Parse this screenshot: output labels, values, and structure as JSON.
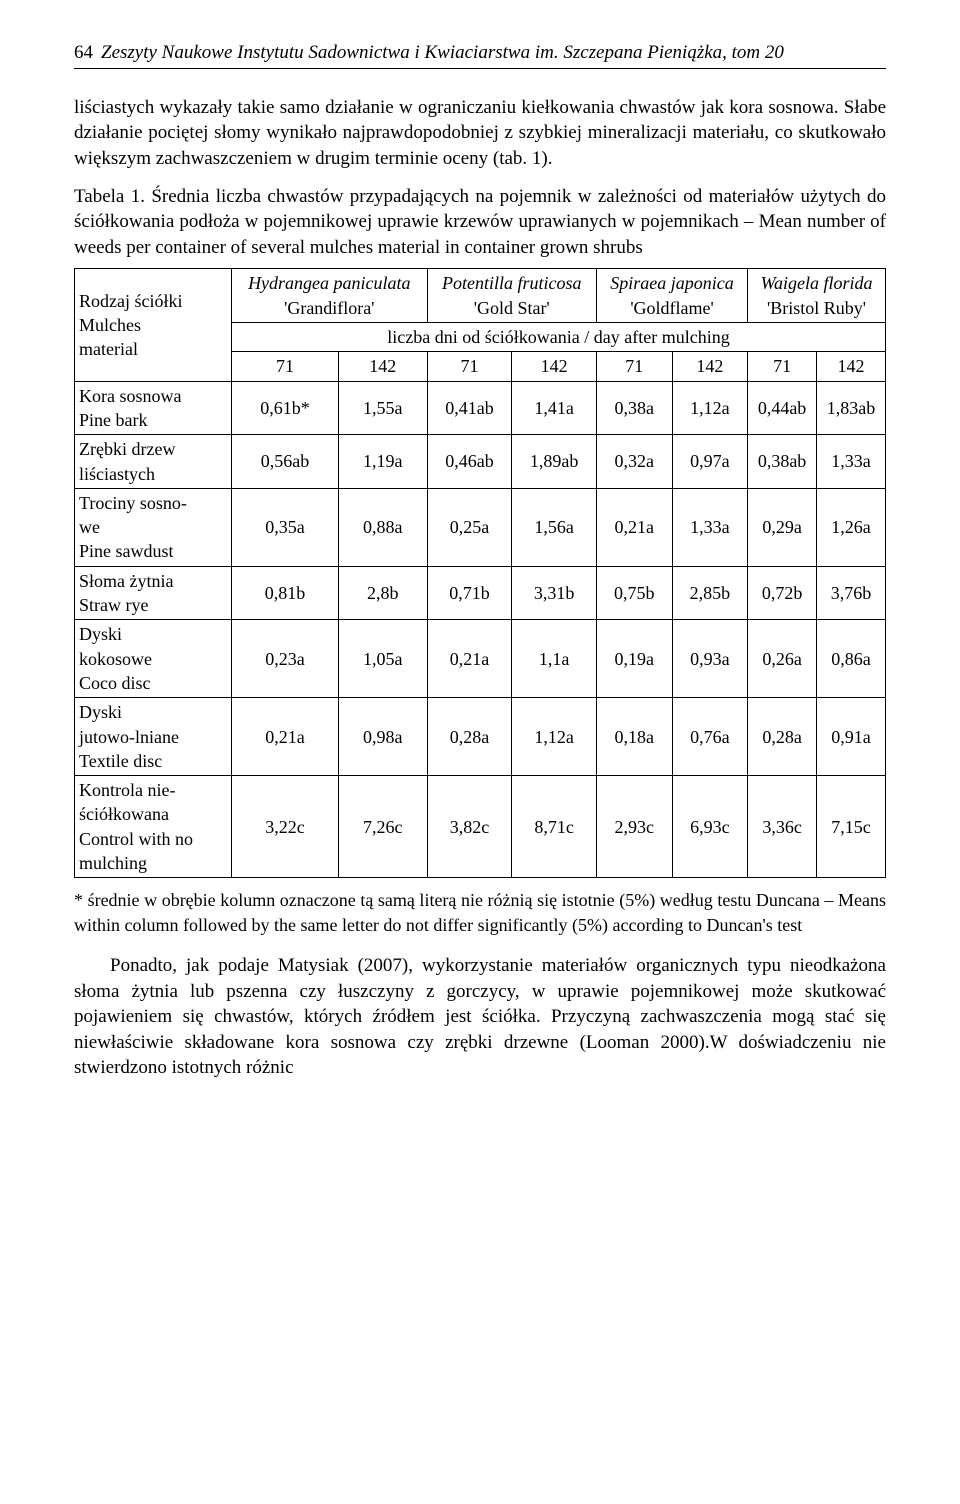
{
  "header": {
    "page_number": "64",
    "journal_title": "Zeszyty Naukowe Instytutu Sadownictwa i Kwiaciarstwa im. Szczepana Pieniążka, tom 20"
  },
  "paragraphs": {
    "p1": "liściastych wykazały takie samo działanie w ograniczaniu kiełkowania chwastów jak kora sosnowa. Słabe działanie pociętej słomy wynikało najprawdopodobniej z szybkiej mineralizacji materiału, co skutkowało większym zachwaszczeniem w drugim terminie oceny (tab. 1).",
    "table_caption": "Tabela 1. Średnia liczba chwastów przypadających na pojemnik w zależności od materiałów użytych do ściółkowania podłoża w pojemnikowej uprawie krzewów uprawianych w pojemnikach – Mean number of weeds per container of several mulches material in container grown shrubs",
    "footnote": "* średnie w obrębie kolumn oznaczone tą samą literą nie różnią się istotnie (5%) według testu Duncana – Means within column followed by the same letter do not differ significantly (5%) according to Duncan's test",
    "p2": "Ponadto, jak podaje Matysiak (2007), wykorzystanie materiałów organicznych typu nieodkażona słoma żytnia lub pszenna czy łuszczyny z gorczycy, w uprawie pojemnikowej może skutkować pojawieniem się chwastów, których źródłem jest ściółka. Przyczyną zachwaszczenia mogą stać się niewłaściwie składowane kora sosnowa czy zrębki drzewne (Looman 2000).W doświadczeniu nie stwierdzono istotnych różnic"
  },
  "table": {
    "row_header_label": "Rodzaj ściółki\nMulches\nmaterial",
    "species": [
      {
        "latin": "Hydrangea paniculata",
        "cultivar": "'Grandiflora'"
      },
      {
        "latin": "Potentilla fruticosa",
        "cultivar": "'Gold Star'"
      },
      {
        "latin": "Spiraea japonica",
        "cultivar": "'Goldflame'"
      },
      {
        "latin": "Waigela florida",
        "cultivar": "'Bristol Ruby'"
      }
    ],
    "subheader": "liczba dni od ściółkowania / day after mulching",
    "days": [
      "71",
      "142",
      "71",
      "142",
      "71",
      "142",
      "71",
      "142"
    ],
    "rows": [
      {
        "label": "Kora sosnowa\nPine bark",
        "vals": [
          "0,61b*",
          "1,55a",
          "0,41ab",
          "1,41a",
          "0,38a",
          "1,12a",
          "0,44ab",
          "1,83ab"
        ]
      },
      {
        "label": "Zrębki drzew\nliściastych",
        "vals": [
          "0,56ab",
          "1,19a",
          "0,46ab",
          "1,89ab",
          "0,32a",
          "0,97a",
          "0,38ab",
          "1,33a"
        ]
      },
      {
        "label": "Trociny sosno-\nwe\nPine sawdust",
        "vals": [
          "0,35a",
          "0,88a",
          "0,25a",
          "1,56a",
          "0,21a",
          "1,33a",
          "0,29a",
          "1,26a"
        ]
      },
      {
        "label": "Słoma żytnia\nStraw rye",
        "vals": [
          "0,81b",
          "2,8b",
          "0,71b",
          "3,31b",
          "0,75b",
          "2,85b",
          "0,72b",
          "3,76b"
        ]
      },
      {
        "label": "Dyski\nkokosowe\nCoco disc",
        "vals": [
          "0,23a",
          "1,05a",
          "0,21a",
          "1,1a",
          "0,19a",
          "0,93a",
          "0,26a",
          "0,86a"
        ]
      },
      {
        "label": "Dyski\njutowo-lniane\nTextile disc",
        "vals": [
          "0,21a",
          "0,98a",
          "0,28a",
          "1,12a",
          "0,18a",
          "0,76a",
          "0,28a",
          "0,91a"
        ]
      },
      {
        "label": "Kontrola nie-\nściółkowana\nControl with no\nmulching",
        "vals": [
          "3,22c",
          "7,26c",
          "3,82c",
          "8,71c",
          "2,93c",
          "6,93c",
          "3,36c",
          "7,15c"
        ]
      }
    ],
    "style": {
      "font_size_pt": 13,
      "border_color": "#000000",
      "background_color": "#ffffff",
      "col_count": 9,
      "text_align_numeric": "center"
    }
  }
}
